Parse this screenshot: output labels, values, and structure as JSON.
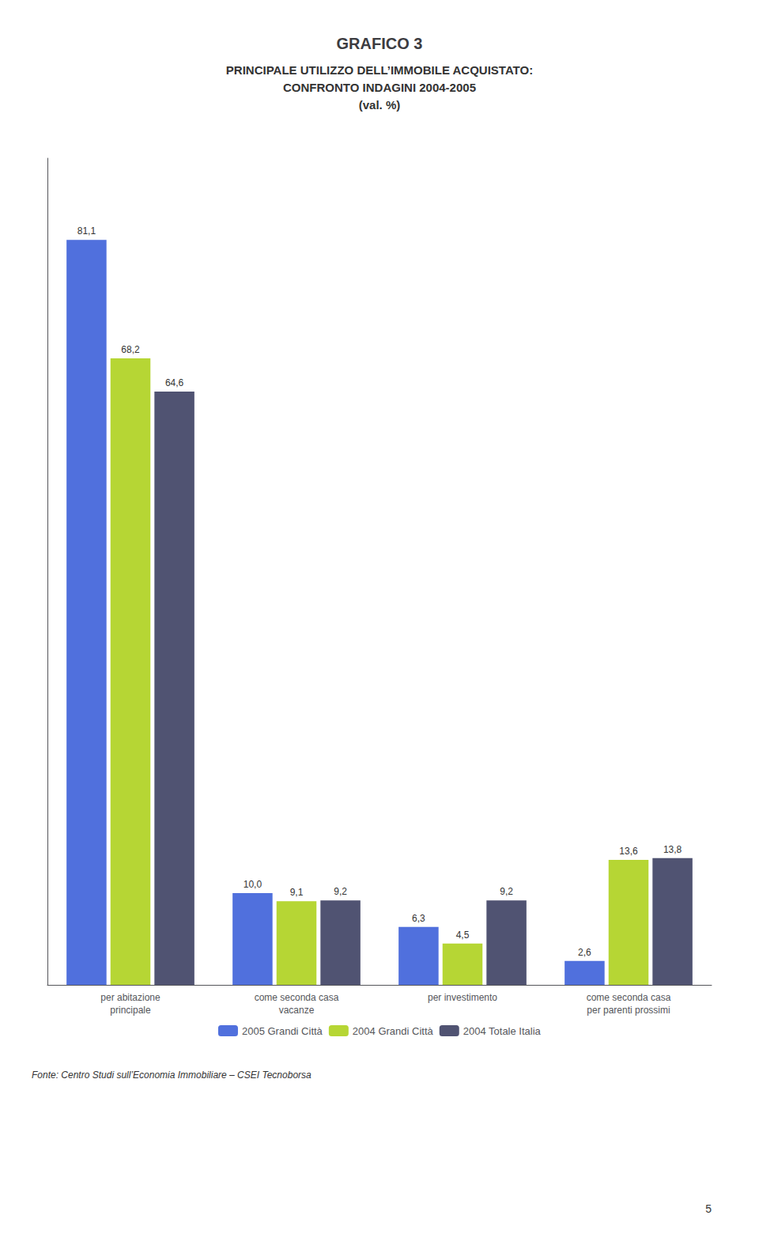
{
  "chart_data": {
    "type": "bar",
    "title": "GRAFICO 3",
    "subtitle": "PRINCIPALE UTILIZZO DELL’IMMOBILE ACQUISTATO:\nCONFRONTO INDAGINI 2004-2005\n(val. %)",
    "categories": [
      "per abitazione\nprincipale",
      "come seconda casa\nvacanze",
      "per investimento",
      "come seconda casa\nper parenti prossimi"
    ],
    "series": [
      {
        "name": "2005 Grandi Città",
        "values": [
          81.1,
          10.0,
          6.3,
          2.6
        ],
        "value_labels": [
          "81,1",
          "10,0",
          "6,3",
          "2,6"
        ]
      },
      {
        "name": "2004 Grandi Città",
        "values": [
          68.2,
          9.1,
          4.5,
          13.6
        ],
        "value_labels": [
          "68,2",
          "9,1",
          "4,5",
          "13,6"
        ]
      },
      {
        "name": "2004 Totale Italia",
        "values": [
          64.6,
          9.2,
          9.2,
          13.8
        ],
        "value_labels": [
          "64,6",
          "9,2",
          "9,2",
          "13,8"
        ]
      }
    ],
    "ylim": [
      0,
      90
    ],
    "data_labels": true,
    "tick_labels": "x",
    "grid": false,
    "legend": "bottom",
    "annotations": [
      "Fonte: Centro Studi sull’Economia Immobiliare – CSEI Tecnoborsa",
      "5"
    ]
  }
}
